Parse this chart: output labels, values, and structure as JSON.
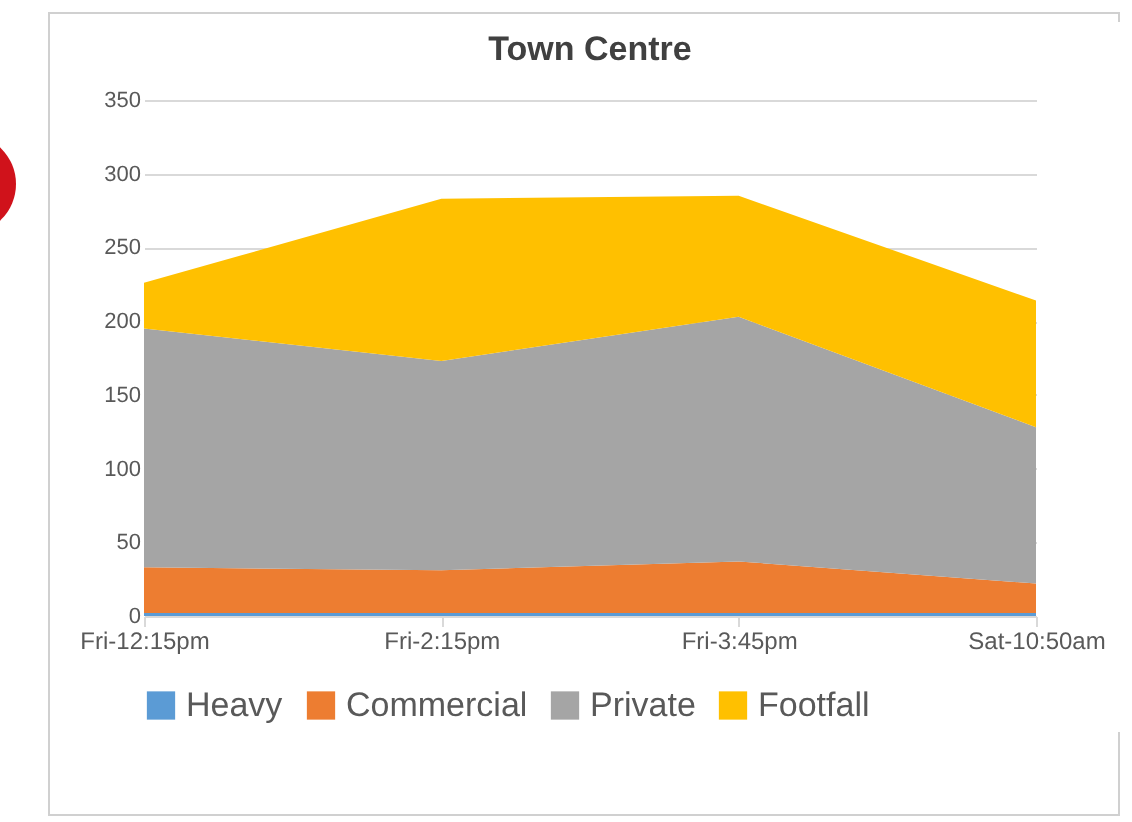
{
  "chart_data": {
    "type": "area",
    "title": "Town Centre",
    "stacked": true,
    "categories": [
      "Fri-12:15pm",
      "Fri-2:15pm",
      "Fri-3:45pm",
      "Sat-10:50am"
    ],
    "series": [
      {
        "name": "Heavy",
        "color": "#5b9bd5",
        "values": [
          2,
          2,
          2,
          2
        ]
      },
      {
        "name": "Commercial",
        "color": "#ed7d31",
        "values": [
          31,
          29,
          35,
          20
        ]
      },
      {
        "name": "Private",
        "color": "#a5a5a5",
        "values": [
          162,
          142,
          166,
          106
        ]
      },
      {
        "name": "Footfall",
        "color": "#ffc000",
        "values": [
          31,
          110,
          82,
          86
        ]
      }
    ],
    "ylim": [
      0,
      350
    ],
    "yticks": [
      0,
      50,
      100,
      150,
      200,
      250,
      300,
      350
    ],
    "grid": "y",
    "legend": "bottom"
  }
}
